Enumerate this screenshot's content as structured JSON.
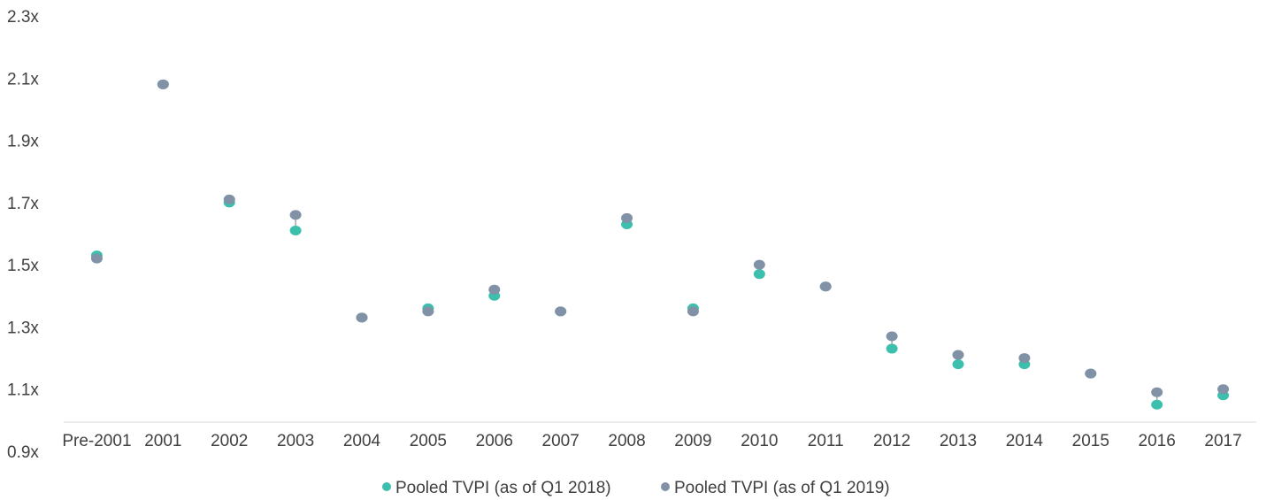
{
  "chart_data": {
    "type": "scatter",
    "categories": [
      "Pre-2001",
      "2001",
      "2002",
      "2003",
      "2004",
      "2005",
      "2006",
      "2007",
      "2008",
      "2009",
      "2010",
      "2011",
      "2012",
      "2013",
      "2014",
      "2015",
      "2016",
      "2017"
    ],
    "series": [
      {
        "name": "Pooled TVPI (as of Q1 2018)",
        "color": "#3dbfad",
        "values": [
          1.53,
          2.08,
          1.7,
          1.61,
          1.33,
          1.36,
          1.4,
          1.35,
          1.63,
          1.36,
          1.47,
          1.43,
          1.23,
          1.18,
          1.18,
          1.15,
          1.05,
          1.08
        ]
      },
      {
        "name": "Pooled TVPI (as of Q1 2019)",
        "color": "#8191a6",
        "values": [
          1.52,
          2.08,
          1.71,
          1.66,
          1.33,
          1.35,
          1.42,
          1.35,
          1.65,
          1.35,
          1.5,
          1.43,
          1.27,
          1.21,
          1.2,
          1.15,
          1.09,
          1.1
        ]
      }
    ],
    "yticks": [
      "0.9x",
      "1.1x",
      "1.3x",
      "1.5x",
      "1.7x",
      "1.9x",
      "2.1x",
      "2.3x"
    ],
    "ytick_values": [
      0.9,
      1.1,
      1.3,
      1.5,
      1.7,
      1.9,
      2.1,
      2.3
    ],
    "ylim": [
      0.9,
      2.3
    ],
    "title": "",
    "xlabel": "",
    "ylabel": "",
    "grid": false,
    "legend_position": "bottom-center",
    "connector_color": "#a6a6a6",
    "axis_color": "#d9d9d9"
  }
}
